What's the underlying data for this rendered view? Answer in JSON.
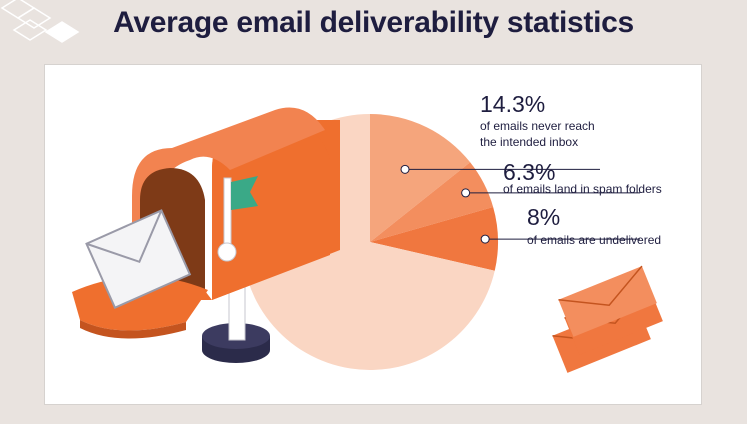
{
  "title": "Average email deliverability statistics",
  "chart_data": {
    "type": "pie",
    "title": "Average email deliverability statistics",
    "slices": [
      {
        "value": 14.3,
        "label": "14.3%",
        "desc_lines": [
          "of emails never reach",
          "the intended inbox"
        ],
        "color": "#f5a57c"
      },
      {
        "value": 6.3,
        "label": "6.3%",
        "desc_lines": [
          "of emails land in spam folders"
        ],
        "color": "#f38e5e"
      },
      {
        "value": 8,
        "label": "8%",
        "desc_lines": [
          "of emails are undelivered"
        ],
        "color": "#f0773f"
      }
    ],
    "remainder_color": "#fad6c3"
  },
  "colors": {
    "background": "#e9e3df",
    "card": "#ffffff",
    "text": "#1e1d3f",
    "accent": "#ef6f2e",
    "flag": "#3aa987"
  },
  "illustrations": [
    "mailbox-illustration",
    "envelopes-illustration",
    "corner-diamonds-decoration"
  ]
}
